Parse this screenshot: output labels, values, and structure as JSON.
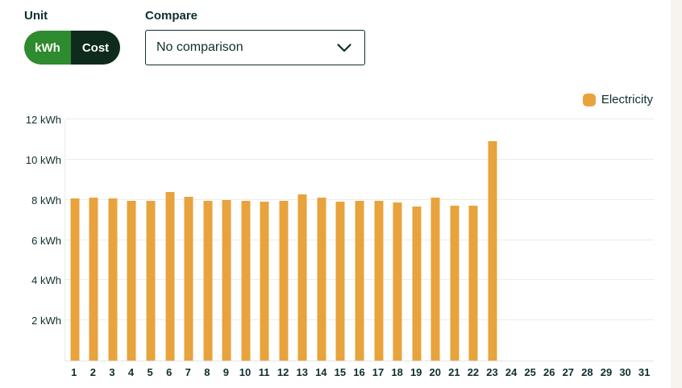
{
  "header": {
    "unit_label": "Unit",
    "unit_toggle": {
      "selected": "kWh",
      "options": [
        {
          "label": "kWh",
          "selected": true
        },
        {
          "label": "Cost",
          "selected": false
        }
      ]
    },
    "compare_label": "Compare",
    "compare_value": "No comparison"
  },
  "legend": {
    "label": "Electricity",
    "color": "#E8A33D"
  },
  "chart_data": {
    "type": "bar",
    "title": "",
    "xlabel": "",
    "ylabel": "kWh",
    "categories": [
      "1",
      "2",
      "3",
      "4",
      "5",
      "6",
      "7",
      "8",
      "9",
      "10",
      "11",
      "12",
      "13",
      "14",
      "15",
      "16",
      "17",
      "18",
      "19",
      "20",
      "21",
      "22",
      "23",
      "24",
      "25",
      "26",
      "27",
      "28",
      "29",
      "30",
      "31"
    ],
    "series": [
      {
        "name": "Electricity",
        "color": "#E8A33D",
        "values": [
          8.05,
          8.1,
          8.05,
          7.95,
          7.95,
          8.4,
          8.15,
          7.95,
          8.0,
          7.95,
          7.9,
          7.95,
          8.25,
          8.1,
          7.9,
          7.95,
          7.95,
          7.85,
          7.65,
          8.1,
          7.7,
          7.7,
          10.9,
          null,
          null,
          null,
          null,
          null,
          null,
          null,
          null
        ]
      }
    ],
    "ylim": [
      0,
      12
    ],
    "yticks": [
      {
        "value": 2,
        "label": "2 kWh"
      },
      {
        "value": 4,
        "label": "4 kWh"
      },
      {
        "value": 6,
        "label": "6 kWh"
      },
      {
        "value": 8,
        "label": "8 kWh"
      },
      {
        "value": 10,
        "label": "10 kWh"
      },
      {
        "value": 12,
        "label": "12 kWh"
      }
    ],
    "grid": true,
    "legend_position": "top-right"
  },
  "colors": {
    "bar": "#E8A33D",
    "toggle_selected_green": "#2F8B2F",
    "toggle_unselected_dark": "#0E2B1D",
    "text_dark_teal": "#0F2E2E",
    "gridline": "#ECECEC",
    "page_edge_strip": "#F7F4EF",
    "background": "#FFFFFF"
  }
}
